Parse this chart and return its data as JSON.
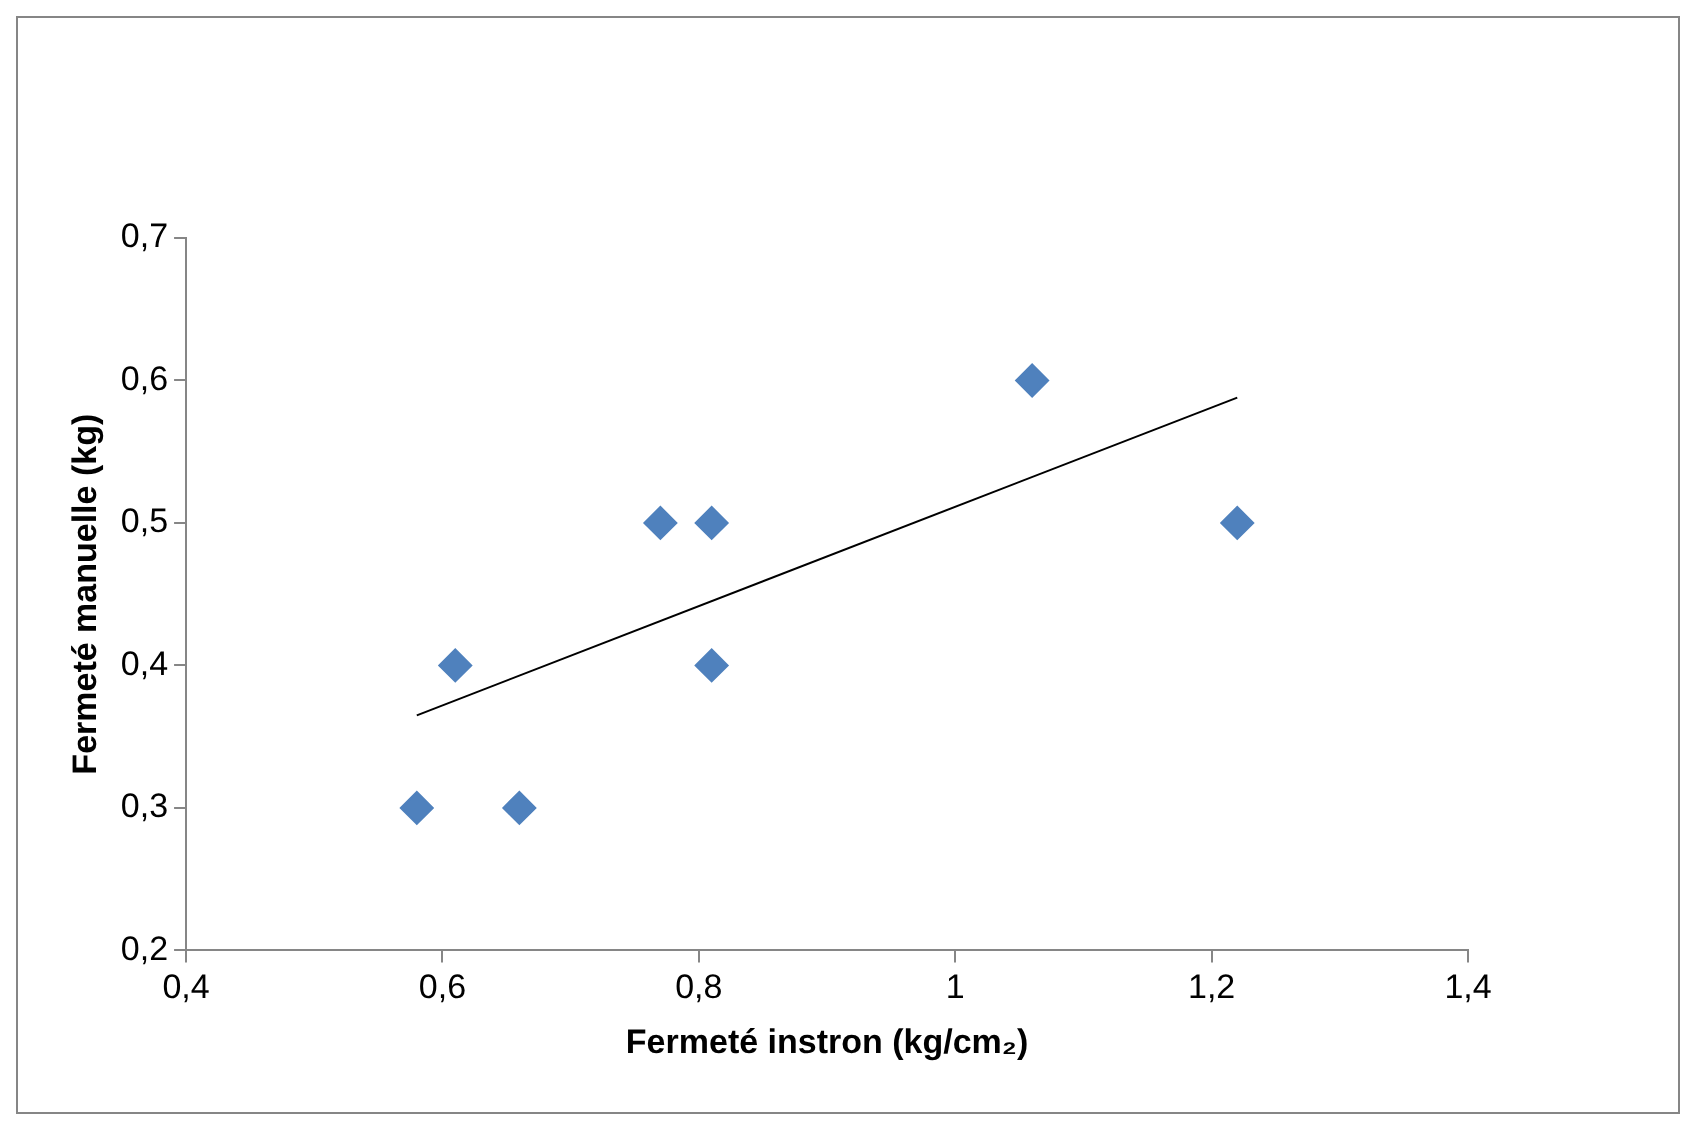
{
  "chart_data": {
    "type": "scatter",
    "xlabel": "Fermeté instron (kg/cm₂)",
    "ylabel": "Fermeté manuelle (kg)",
    "series": [
      {
        "color": "#4f81bd",
        "marker": "diamond",
        "x": [
          0.58,
          0.61,
          0.66,
          0.77,
          0.81,
          0.81,
          1.06,
          1.22
        ],
        "values": [
          0.3,
          0.4,
          0.3,
          0.5,
          0.5,
          0.4,
          0.6,
          0.5
        ]
      },
      {
        "type": "line",
        "marker": "none",
        "color": "#000000",
        "x": [
          0.58,
          1.22
        ],
        "values": [
          0.365,
          0.588
        ]
      }
    ],
    "grid": false,
    "legend": false,
    "xlim": [
      0.4,
      1.4
    ],
    "xticks": [
      {
        "value": 0.4,
        "label": "0,4"
      },
      {
        "value": 0.6,
        "label": "0,6"
      },
      {
        "value": 0.8,
        "label": "0,8"
      },
      1,
      {
        "value": 1.2,
        "label": "1,2"
      },
      {
        "value": 1.4,
        "label": "1,4"
      }
    ],
    "ylim": [
      0.2,
      0.7
    ],
    "yticks": [
      {
        "value": 0.2,
        "label": "0,2"
      },
      {
        "value": 0.3,
        "label": "0,3"
      },
      {
        "value": 0.4,
        "label": "0,4"
      },
      {
        "value": 0.5,
        "label": "0,5"
      },
      {
        "value": 0.6,
        "label": "0,6"
      },
      {
        "value": 0.7,
        "label": "0,7"
      }
    ]
  }
}
